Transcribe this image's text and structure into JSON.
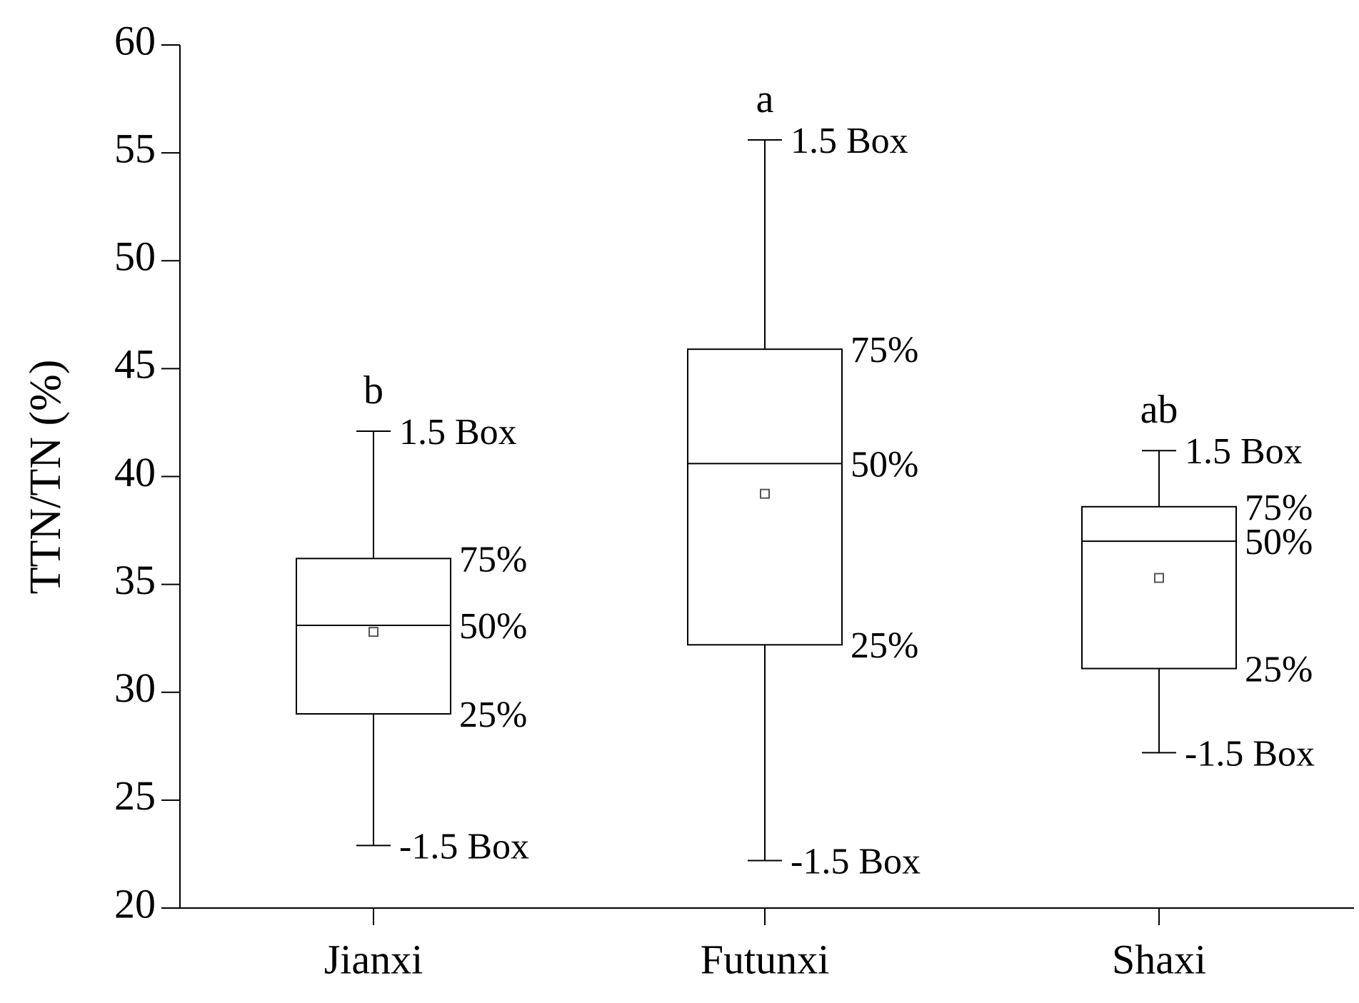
{
  "chart_data": {
    "type": "box",
    "y_label": "TTN/TN (%)",
    "categories": [
      "Jianxi",
      "Futunxi",
      "Shaxi"
    ],
    "box_labels": {
      "whisker_high": "1.5 Box",
      "q3": "75%",
      "median": "50%",
      "q1": "25%",
      "whisker_low": "-1.5 Box"
    },
    "boxes": [
      {
        "whisker_low": 22.9,
        "q1": 29.0,
        "median": 33.1,
        "q3": 36.2,
        "whisker_high": 42.1,
        "mean": 32.8,
        "letter": "b"
      },
      {
        "whisker_low": 22.2,
        "q1": 32.2,
        "median": 40.6,
        "q3": 45.9,
        "whisker_high": 55.6,
        "mean": 39.2,
        "letter": "a"
      },
      {
        "whisker_low": 27.2,
        "q1": 31.1,
        "median": 37.0,
        "q3": 38.6,
        "whisker_high": 41.2,
        "mean": 35.3,
        "letter": "ab"
      }
    ],
    "color": "#000000",
    "mean_color": "#555555",
    "ylim": [
      20,
      60
    ],
    "yticks": [
      20,
      25,
      30,
      35,
      40,
      45,
      50,
      55,
      60
    ]
  }
}
